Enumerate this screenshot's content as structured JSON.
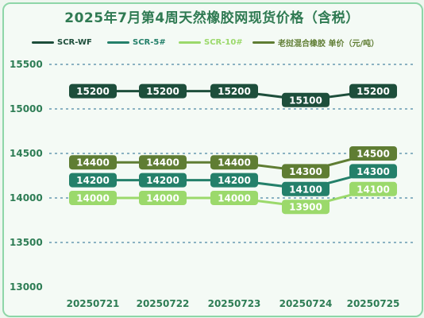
{
  "chart_data": {
    "type": "line",
    "title": "2025年7月第4周天然橡胶网现货价格（含税）",
    "categories": [
      "20250721",
      "20250722",
      "20250723",
      "20250724",
      "20250725"
    ],
    "ylim": [
      13000,
      15500
    ],
    "yticks": [
      "13000",
      "13500",
      "14000",
      "14500",
      "15000",
      "15500"
    ],
    "grid": true,
    "legend": "top",
    "series": [
      {
        "name": "SCR-WF",
        "color": "#1d4e3b",
        "values": [
          15200,
          15200,
          15200,
          15100,
          15200
        ],
        "labels": [
          "15200",
          "15200",
          "15200",
          "15100",
          "15200"
        ]
      },
      {
        "name": "SCR-5#",
        "color": "#24806a",
        "values": [
          14200,
          14200,
          14200,
          14100,
          14300
        ],
        "labels": [
          "14200",
          "14200",
          "14200",
          "14100",
          "14300"
        ]
      },
      {
        "name": "SCR-10#",
        "color": "#9bd96b",
        "values": [
          14000,
          14000,
          14000,
          13900,
          14100
        ],
        "labels": [
          "14000",
          "14000",
          "14000",
          "13900",
          "14100"
        ]
      },
      {
        "name": "老挝混合橡胶 单价（元/吨）",
        "color": "#5f7d33",
        "values": [
          14400,
          14400,
          14400,
          14300,
          14500
        ],
        "labels": [
          "14400",
          "14400",
          "14400",
          "14300",
          "14500"
        ]
      }
    ]
  }
}
